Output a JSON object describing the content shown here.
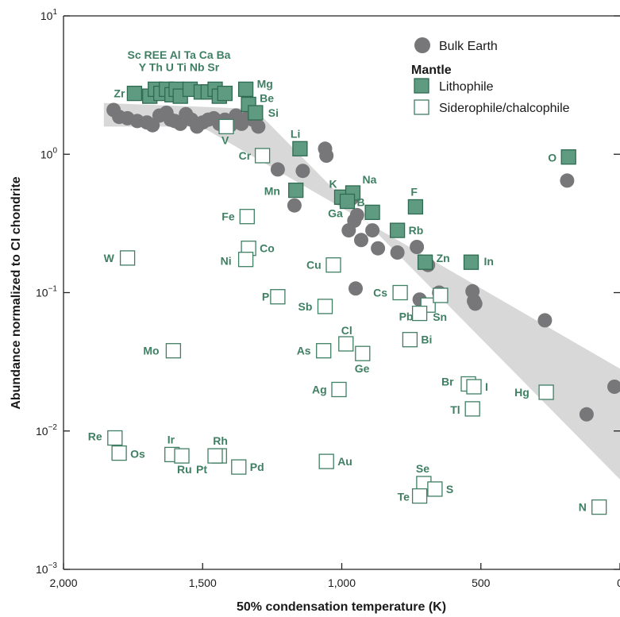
{
  "chart_data": {
    "type": "scatter",
    "title": "",
    "xlabel": "50% condensation temperature (K)",
    "ylabel": "Abundance normalized to CI chondrite",
    "xlim": [
      2000,
      0
    ],
    "ylim_log10": [
      -3,
      1
    ],
    "x_ticks": [
      {
        "value": 2000,
        "label": "2,000"
      },
      {
        "value": 1500,
        "label": "1,500"
      },
      {
        "value": 1000,
        "label": "1,000"
      },
      {
        "value": 500,
        "label": "500"
      },
      {
        "value": 0,
        "label": "0"
      }
    ],
    "y_ticks": [
      {
        "exp": 1,
        "base": "10",
        "sup": "1"
      },
      {
        "exp": 0,
        "base": "10",
        "sup": "0"
      },
      {
        "exp": -1,
        "base": "10",
        "sup": "−1"
      },
      {
        "exp": -2,
        "base": "10",
        "sup": "−2"
      },
      {
        "exp": -3,
        "base": "10",
        "sup": "−3"
      }
    ],
    "colors": {
      "lithophile_fill": "#5f9b80",
      "lithophile_stroke": "#2f6b52",
      "siderophile_stroke": "#3f7f63",
      "bulk_earth": "#77777a",
      "band": "#d8d8d8",
      "label": "#3f7f63"
    },
    "legend": {
      "position": "top-right",
      "bulk_earth": "Bulk Earth",
      "mantle_title": "Mantle",
      "lithophile": "Lithophile",
      "siderophile": "Siderophile/chalcophile"
    },
    "band": [
      [
        1855,
        0.37
      ],
      [
        1340,
        0.33
      ],
      [
        1300,
        0.3
      ],
      [
        0,
        -2.35
      ],
      [
        0,
        -1.58
      ],
      [
        0,
        -1.55
      ],
      [
        1505,
        0.2
      ],
      [
        1855,
        0.2
      ]
    ],
    "bulk_earth": [
      [
        1820,
        0.32
      ],
      [
        1800,
        0.27
      ],
      [
        1770,
        0.26
      ],
      [
        1735,
        0.24
      ],
      [
        1700,
        0.23
      ],
      [
        1680,
        0.21
      ],
      [
        1655,
        0.28
      ],
      [
        1630,
        0.3
      ],
      [
        1615,
        0.25
      ],
      [
        1600,
        0.24
      ],
      [
        1580,
        0.22
      ],
      [
        1560,
        0.29
      ],
      [
        1540,
        0.25
      ],
      [
        1520,
        0.2
      ],
      [
        1500,
        0.23
      ],
      [
        1480,
        0.25
      ],
      [
        1460,
        0.26
      ],
      [
        1440,
        0.22
      ],
      [
        1420,
        0.25
      ],
      [
        1400,
        0.21
      ],
      [
        1380,
        0.28
      ],
      [
        1360,
        0.22
      ],
      [
        1340,
        0.26
      ],
      [
        1320,
        0.25
      ],
      [
        1300,
        0.2
      ],
      [
        1230,
        -0.11
      ],
      [
        1170,
        -0.37
      ],
      [
        1140,
        -0.12
      ],
      [
        1060,
        0.04
      ],
      [
        1055,
        -0.01
      ],
      [
        980,
        -0.31
      ],
      [
        975,
        -0.55
      ],
      [
        965,
        -0.32
      ],
      [
        955,
        -0.48
      ],
      [
        945,
        -0.44
      ],
      [
        930,
        -0.62
      ],
      [
        890,
        -0.55
      ],
      [
        870,
        -0.68
      ],
      [
        800,
        -0.71
      ],
      [
        730,
        -0.67
      ],
      [
        700,
        -0.78
      ],
      [
        690,
        -0.8
      ],
      [
        950,
        -0.97
      ],
      [
        720,
        -1.05
      ],
      [
        650,
        -1.0
      ],
      [
        530,
        -0.99
      ],
      [
        525,
        -1.06
      ],
      [
        520,
        -1.08
      ],
      [
        270,
        -1.2
      ],
      [
        190,
        -0.19
      ],
      [
        120,
        -1.88
      ],
      [
        20,
        -1.68
      ]
    ],
    "lithophile": [
      {
        "name": "Zr",
        "x": 1745,
        "y": 0.44,
        "label": "Zr",
        "dx": -26,
        "dy": 5
      },
      {
        "x": 1690,
        "y": 0.42
      },
      {
        "x": 1670,
        "y": 0.47
      },
      {
        "x": 1650,
        "y": 0.44
      },
      {
        "x": 1630,
        "y": 0.47
      },
      {
        "x": 1610,
        "y": 0.43
      },
      {
        "x": 1595,
        "y": 0.47
      },
      {
        "x": 1580,
        "y": 0.42
      },
      {
        "x": 1545,
        "y": 0.47
      },
      {
        "x": 1505,
        "y": 0.45
      },
      {
        "x": 1480,
        "y": 0.45
      },
      {
        "x": 1455,
        "y": 0.47
      },
      {
        "x": 1440,
        "y": 0.42
      },
      {
        "x": 1420,
        "y": 0.44
      },
      {
        "name": "Mg",
        "x": 1345,
        "y": 0.47,
        "label": "Mg",
        "dx": 14,
        "dy": -2
      },
      {
        "name": "Be",
        "x": 1335,
        "y": 0.36,
        "label": "Be",
        "dx": 14,
        "dy": -3
      },
      {
        "name": "Si",
        "x": 1310,
        "y": 0.3,
        "label": "Si",
        "dx": 16,
        "dy": 5
      },
      {
        "name": "Li",
        "x": 1150,
        "y": 0.04,
        "label": "Li",
        "dx": -12,
        "dy": -14
      },
      {
        "name": "Mn",
        "x": 1165,
        "y": -0.26,
        "label": "Mn",
        "dx": -40,
        "dy": 6
      },
      {
        "name": "K",
        "x": 1000,
        "y": -0.31,
        "label": "K",
        "dx": -16,
        "dy": -12
      },
      {
        "name": "Na",
        "x": 960,
        "y": -0.28,
        "label": "Na",
        "dx": 12,
        "dy": -12
      },
      {
        "name": "B",
        "x": 980,
        "y": -0.34,
        "label": "B",
        "dx": 12,
        "dy": 6
      },
      {
        "name": "Ga",
        "x": 890,
        "y": -0.42,
        "label": "Ga",
        "dx": -56,
        "dy": 6
      },
      {
        "name": "F",
        "x": 735,
        "y": -0.38,
        "label": "F",
        "dx": -6,
        "dy": -14
      },
      {
        "name": "Rb",
        "x": 800,
        "y": -0.55,
        "label": "Rb",
        "dx": 14,
        "dy": 5
      },
      {
        "name": "Zn",
        "x": 700,
        "y": -0.78,
        "label": "Zn",
        "dx": 14,
        "dy": 0
      },
      {
        "name": "In",
        "x": 535,
        "y": -0.78,
        "label": "In",
        "dx": 16,
        "dy": 4
      },
      {
        "name": "O",
        "x": 185,
        "y": -0.02,
        "label": "O",
        "dx": -26,
        "dy": 6
      }
    ],
    "lithophile_group_labels": [
      {
        "text": "Sc REE Al Ta Ca Ba",
        "x": 1585,
        "y": 0.72
      },
      {
        "text": "Y Th U Ti Nb Sr",
        "x": 1585,
        "y": 0.63
      }
    ],
    "siderophile": [
      {
        "name": "V",
        "x": 1415,
        "y": 0.2,
        "label": "V",
        "dx": -6,
        "dy": 22
      },
      {
        "name": "Cr",
        "x": 1285,
        "y": -0.01,
        "label": "Cr",
        "dx": -30,
        "dy": 5
      },
      {
        "name": "Fe",
        "x": 1340,
        "y": -0.45,
        "label": "Fe",
        "dx": -32,
        "dy": 5
      },
      {
        "name": "W",
        "x": 1770,
        "y": -0.75,
        "label": "W",
        "dx": -30,
        "dy": 5
      },
      {
        "name": "Co",
        "x": 1335,
        "y": -0.68,
        "label": "Co",
        "dx": 14,
        "dy": 5
      },
      {
        "name": "Ni",
        "x": 1345,
        "y": -0.76,
        "label": "Ni",
        "dx": -32,
        "dy": 7
      },
      {
        "name": "Cu",
        "x": 1030,
        "y": -0.8,
        "label": "Cu",
        "dx": -34,
        "dy": 5
      },
      {
        "name": "P",
        "x": 1230,
        "y": -1.03,
        "label": "P",
        "dx": -20,
        "dy": 5
      },
      {
        "name": "Sb",
        "x": 1060,
        "y": -1.1,
        "label": "Sb",
        "dx": -34,
        "dy": 5
      },
      {
        "name": "Cs",
        "x": 790,
        "y": -1.0,
        "label": "Cs",
        "dx": -34,
        "dy": 5
      },
      {
        "name": "Sn",
        "x": 690,
        "y": -1.09,
        "label": "Sn",
        "dx": 6,
        "dy": 20
      },
      {
        "name": "Pb",
        "x": 720,
        "y": -1.15,
        "label": "Pb",
        "dx": -26,
        "dy": 9
      },
      {
        "x": 645,
        "y": -1.02
      },
      {
        "name": "Mo",
        "x": 1605,
        "y": -1.42,
        "label": "Mo",
        "dx": -38,
        "dy": 5
      },
      {
        "name": "As",
        "x": 1065,
        "y": -1.42,
        "label": "As",
        "dx": -34,
        "dy": 5
      },
      {
        "name": "Cl",
        "x": 985,
        "y": -1.37,
        "label": "Cl",
        "dx": -6,
        "dy": -12
      },
      {
        "name": "Ge",
        "x": 925,
        "y": -1.44,
        "label": "Ge",
        "dx": -10,
        "dy": 24
      },
      {
        "name": "Bi",
        "x": 755,
        "y": -1.34,
        "label": "Bi",
        "dx": 14,
        "dy": 5
      },
      {
        "name": "Ag",
        "x": 1010,
        "y": -1.7,
        "label": "Ag",
        "dx": -34,
        "dy": 5
      },
      {
        "name": "Br",
        "x": 545,
        "y": -1.66,
        "label": "Br",
        "dx": -34,
        "dy": 2
      },
      {
        "name": "I",
        "x": 525,
        "y": -1.68,
        "label": "I",
        "dx": 14,
        "dy": 5
      },
      {
        "name": "Tl",
        "x": 530,
        "y": -1.84,
        "label": "Tl",
        "dx": -28,
        "dy": 6
      },
      {
        "name": "Hg",
        "x": 265,
        "y": -1.72,
        "label": "Hg",
        "dx": -40,
        "dy": 5
      },
      {
        "name": "Re",
        "x": 1815,
        "y": -2.05,
        "label": "Re",
        "dx": -34,
        "dy": 3
      },
      {
        "name": "Os",
        "x": 1800,
        "y": -2.16,
        "label": "Os",
        "dx": 14,
        "dy": 6
      },
      {
        "name": "Ir",
        "x": 1610,
        "y": -2.17,
        "label": "Ir",
        "dx": -6,
        "dy": -14
      },
      {
        "name": "Ru",
        "x": 1575,
        "y": -2.18,
        "label": "Ru",
        "dx": -6,
        "dy": 22
      },
      {
        "name": "Rh",
        "x": 1440,
        "y": -2.18,
        "label": "Rh",
        "dx": -8,
        "dy": -14
      },
      {
        "name": "Pt",
        "x": 1455,
        "y": -2.18,
        "label": "Pt",
        "dx": -24,
        "dy": 22
      },
      {
        "name": "Pd",
        "x": 1370,
        "y": -2.26,
        "label": "Pd",
        "dx": 14,
        "dy": 5
      },
      {
        "name": "Au",
        "x": 1055,
        "y": -2.22,
        "label": "Au",
        "dx": 14,
        "dy": 5
      },
      {
        "name": "Se",
        "x": 705,
        "y": -2.38,
        "label": "Se",
        "dx": -10,
        "dy": -14
      },
      {
        "name": "Te",
        "x": 720,
        "y": -2.47,
        "label": "Te",
        "dx": -28,
        "dy": 6
      },
      {
        "name": "S",
        "x": 665,
        "y": -2.42,
        "label": "S",
        "dx": 14,
        "dy": 5
      },
      {
        "name": "N",
        "x": 75,
        "y": -2.55,
        "label": "N",
        "dx": -26,
        "dy": 5
      }
    ]
  }
}
